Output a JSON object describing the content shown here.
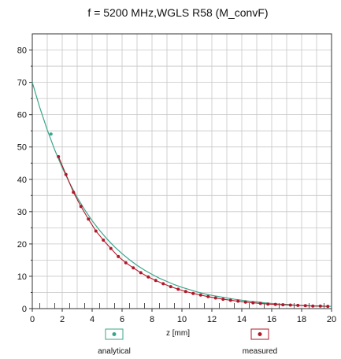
{
  "chart_data": {
    "type": "line",
    "title": "f = 5200 MHz,WGLS R58 (M_convF)",
    "xlabel": "z [mm]",
    "ylabel": "",
    "xlim": [
      0,
      20
    ],
    "ylim": [
      0,
      85
    ],
    "x_ticks": [
      0,
      2,
      4,
      6,
      8,
      10,
      12,
      14,
      16,
      18,
      20
    ],
    "y_ticks": [
      0,
      10,
      20,
      30,
      40,
      50,
      60,
      70,
      80
    ],
    "grid": true,
    "legend_position": "bottom",
    "series": [
      {
        "name": "analytical",
        "color": "#3aa58a",
        "marker": "circle",
        "x": [
          0.0,
          0.5,
          1.0,
          1.5,
          2.0,
          2.5,
          3.0,
          3.5,
          4.0,
          4.5,
          5.0,
          5.5,
          6.0,
          6.5,
          7.0,
          7.5,
          8.0,
          8.5,
          9.0,
          9.5,
          10.0,
          10.5,
          11.0,
          11.5,
          12.0,
          12.5,
          13.0,
          13.5,
          14.0,
          14.5,
          15.0,
          15.5,
          16.0,
          16.5,
          17.0,
          17.5,
          18.0,
          18.5,
          19.0,
          19.5,
          20.0
        ],
        "values": [
          70.0,
          62.2,
          55.3,
          49.1,
          43.6,
          38.8,
          34.4,
          30.6,
          27.2,
          24.2,
          21.5,
          19.1,
          17.0,
          15.1,
          13.4,
          11.9,
          10.6,
          9.4,
          8.4,
          7.4,
          6.6,
          5.9,
          5.2,
          4.6,
          4.1,
          3.7,
          3.3,
          2.9,
          2.6,
          2.3,
          2.1,
          1.8,
          1.6,
          1.4,
          1.3,
          1.1,
          1.0,
          0.9,
          0.8,
          0.7,
          0.7
        ],
        "markers_x": [
          1.25
        ],
        "markers_y": [
          54.0
        ]
      },
      {
        "name": "measured",
        "color": "#b0182a",
        "marker": "circle",
        "x": [
          1.75,
          2.25,
          2.75,
          3.25,
          3.75,
          4.25,
          4.75,
          5.25,
          5.75,
          6.25,
          6.75,
          7.25,
          7.75,
          8.25,
          8.75,
          9.25,
          9.75,
          10.25,
          10.75,
          11.25,
          11.75,
          12.25,
          12.75,
          13.25,
          13.75,
          14.25,
          14.75,
          15.25,
          15.75,
          16.25,
          16.75,
          17.25,
          17.75,
          18.25,
          18.75,
          19.25,
          19.75
        ],
        "values": [
          47.0,
          41.5,
          36.0,
          31.6,
          27.7,
          24.0,
          21.2,
          18.6,
          16.1,
          14.2,
          12.6,
          11.1,
          9.8,
          8.7,
          7.7,
          6.8,
          6.0,
          5.3,
          4.7,
          4.2,
          3.7,
          3.3,
          2.9,
          2.6,
          2.3,
          2.0,
          1.8,
          1.6,
          1.4,
          1.3,
          1.2,
          1.1,
          1.0,
          0.9,
          0.8,
          0.8,
          0.7
        ]
      }
    ]
  }
}
